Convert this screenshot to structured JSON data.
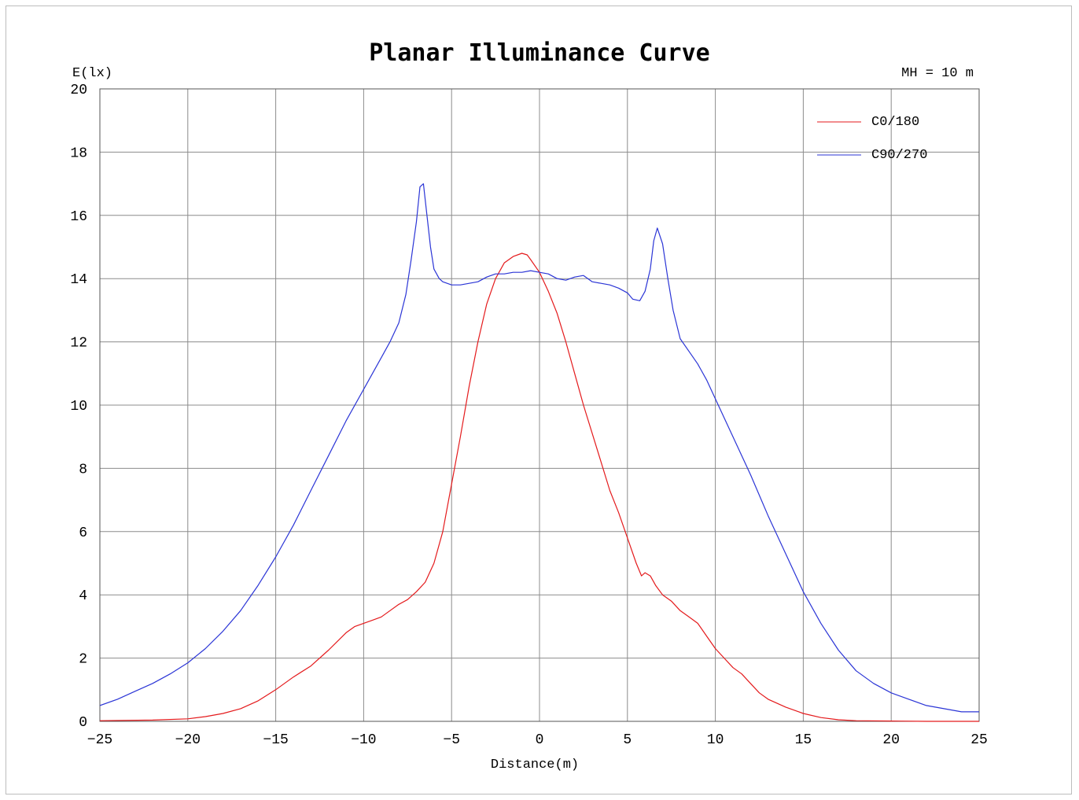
{
  "chart_data": {
    "type": "line",
    "title": "Planar Illuminance Curve",
    "ylabel": "E(lx)",
    "xlabel": "Distance(m)",
    "annotation": "MH = 10 m",
    "xlim": [
      -25,
      25
    ],
    "ylim": [
      0,
      20
    ],
    "xticks": [
      -25,
      -20,
      -15,
      -10,
      -5,
      0,
      5,
      10,
      15,
      20,
      25
    ],
    "yticks": [
      0,
      2,
      4,
      6,
      8,
      10,
      12,
      14,
      16,
      18,
      20
    ],
    "grid": true,
    "legend_position": "top-right",
    "series": [
      {
        "name": "C0/180",
        "color": "#e41a1c",
        "x": [
          -25,
          -22,
          -20,
          -19,
          -18,
          -17,
          -16,
          -15,
          -14,
          -13,
          -12,
          -11,
          -10.5,
          -10,
          -9.5,
          -9,
          -8.5,
          -8,
          -7.5,
          -7,
          -6.5,
          -6,
          -5.5,
          -5,
          -4.5,
          -4,
          -3.5,
          -3,
          -2.5,
          -2,
          -1.5,
          -1,
          -0.7,
          -0.5,
          0,
          0.5,
          1,
          1.5,
          2,
          2.5,
          3,
          3.5,
          4,
          4.5,
          5,
          5.5,
          5.8,
          6,
          6.3,
          6.6,
          7,
          7.5,
          8,
          8.5,
          9,
          9.5,
          10,
          10.5,
          11,
          11.5,
          12,
          12.5,
          13,
          14,
          15,
          16,
          17,
          18,
          20,
          22,
          25
        ],
        "y": [
          0.02,
          0.04,
          0.08,
          0.15,
          0.25,
          0.4,
          0.65,
          1.0,
          1.4,
          1.75,
          2.25,
          2.8,
          3.0,
          3.1,
          3.2,
          3.3,
          3.5,
          3.7,
          3.85,
          4.1,
          4.4,
          5.0,
          6.0,
          7.5,
          9.0,
          10.6,
          12.0,
          13.2,
          14.0,
          14.5,
          14.7,
          14.8,
          14.75,
          14.6,
          14.2,
          13.6,
          12.9,
          12.0,
          11.0,
          10.0,
          9.1,
          8.2,
          7.3,
          6.6,
          5.8,
          5.0,
          4.6,
          4.7,
          4.6,
          4.3,
          4.0,
          3.8,
          3.5,
          3.3,
          3.1,
          2.7,
          2.3,
          2.0,
          1.7,
          1.5,
          1.2,
          0.9,
          0.7,
          0.45,
          0.25,
          0.12,
          0.05,
          0.02,
          0.01,
          0.0,
          0.0
        ]
      },
      {
        "name": "C90/270",
        "color": "#2b35d6",
        "x": [
          -25,
          -24,
          -23,
          -22,
          -21,
          -20,
          -19,
          -18,
          -17,
          -16,
          -15,
          -14,
          -13,
          -12,
          -11,
          -10,
          -9.5,
          -9,
          -8.5,
          -8,
          -7.6,
          -7.3,
          -7,
          -6.8,
          -6.6,
          -6.4,
          -6.2,
          -6,
          -5.7,
          -5.5,
          -5,
          -4.5,
          -4,
          -3.5,
          -3,
          -2.5,
          -2,
          -1.5,
          -1,
          -0.5,
          0,
          0.5,
          1,
          1.5,
          2,
          2.5,
          3,
          3.5,
          4,
          4.5,
          5,
          5.3,
          5.7,
          6,
          6.3,
          6.5,
          6.7,
          7,
          7.3,
          7.6,
          8,
          8.5,
          9,
          9.5,
          10,
          11,
          12,
          13,
          14,
          15,
          16,
          17,
          18,
          19,
          20,
          21,
          22,
          23,
          24,
          25
        ],
        "y": [
          0.5,
          0.7,
          0.95,
          1.2,
          1.5,
          1.85,
          2.3,
          2.85,
          3.5,
          4.3,
          5.2,
          6.2,
          7.3,
          8.4,
          9.5,
          10.5,
          11.0,
          11.5,
          12.0,
          12.6,
          13.5,
          14.6,
          15.8,
          16.9,
          17.0,
          16.0,
          15.0,
          14.3,
          14.0,
          13.9,
          13.8,
          13.8,
          13.85,
          13.9,
          14.05,
          14.15,
          14.15,
          14.2,
          14.2,
          14.25,
          14.2,
          14.15,
          14.0,
          13.95,
          14.05,
          14.1,
          13.9,
          13.85,
          13.8,
          13.7,
          13.55,
          13.35,
          13.3,
          13.6,
          14.3,
          15.2,
          15.6,
          15.1,
          14.0,
          13.0,
          12.1,
          11.7,
          11.3,
          10.8,
          10.2,
          9.0,
          7.8,
          6.5,
          5.3,
          4.1,
          3.1,
          2.25,
          1.6,
          1.2,
          0.9,
          0.7,
          0.5,
          0.4,
          0.3,
          0.3
        ]
      }
    ]
  }
}
